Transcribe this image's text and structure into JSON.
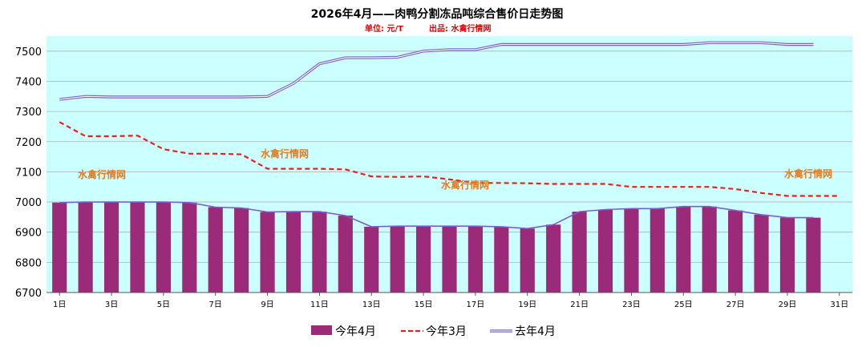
{
  "chart_data": {
    "type": "bar",
    "title": "2026年4月——肉鸭分割冻品吨综合售价日走势图",
    "unit_label": "单位: 元/T",
    "source_label": "出品: 水禽行情网",
    "ylim": [
      6700,
      7550
    ],
    "yticks": [
      6700,
      6800,
      6900,
      7000,
      7100,
      7200,
      7300,
      7400,
      7500
    ],
    "xtick_labels": [
      "1日",
      "3日",
      "5日",
      "7日",
      "9日",
      "11日",
      "13日",
      "15日",
      "17日",
      "19日",
      "21日",
      "23日",
      "25日",
      "27日",
      "29日",
      "31日"
    ],
    "days": 31,
    "series": [
      {
        "name": "今年4月",
        "kind": "bar",
        "color": "#9b2a78",
        "values": [
          6998,
          7000,
          7000,
          7000,
          7000,
          6998,
          6983,
          6980,
          6967,
          6968,
          6968,
          6955,
          6918,
          6920,
          6920,
          6920,
          6920,
          6918,
          6912,
          6925,
          6968,
          6975,
          6978,
          6978,
          6985,
          6985,
          6972,
          6958,
          6948,
          6948
        ]
      },
      {
        "name": "今年3月",
        "kind": "line-dashed",
        "color": "#e8201c",
        "values": [
          7265,
          7218,
          7218,
          7220,
          7175,
          7160,
          7160,
          7158,
          7110,
          7110,
          7110,
          7108,
          7085,
          7083,
          7085,
          7075,
          7063,
          7063,
          7062,
          7060,
          7060,
          7060,
          7050,
          7050,
          7050,
          7050,
          7043,
          7030,
          7020,
          7020,
          7020
        ]
      },
      {
        "name": "去年4月",
        "kind": "line-double",
        "color": "#7a60c8",
        "values": [
          7340,
          7350,
          7348,
          7348,
          7348,
          7348,
          7348,
          7348,
          7350,
          7393,
          7458,
          7478,
          7478,
          7480,
          7500,
          7505,
          7505,
          7522,
          7522,
          7522,
          7522,
          7522,
          7522,
          7522,
          7522,
          7528,
          7528,
          7528,
          7522,
          7522
        ]
      }
    ],
    "watermarks": [
      "水禽行情网",
      "水禽行情网",
      "水禽行情网",
      "水禽行情网"
    ]
  }
}
